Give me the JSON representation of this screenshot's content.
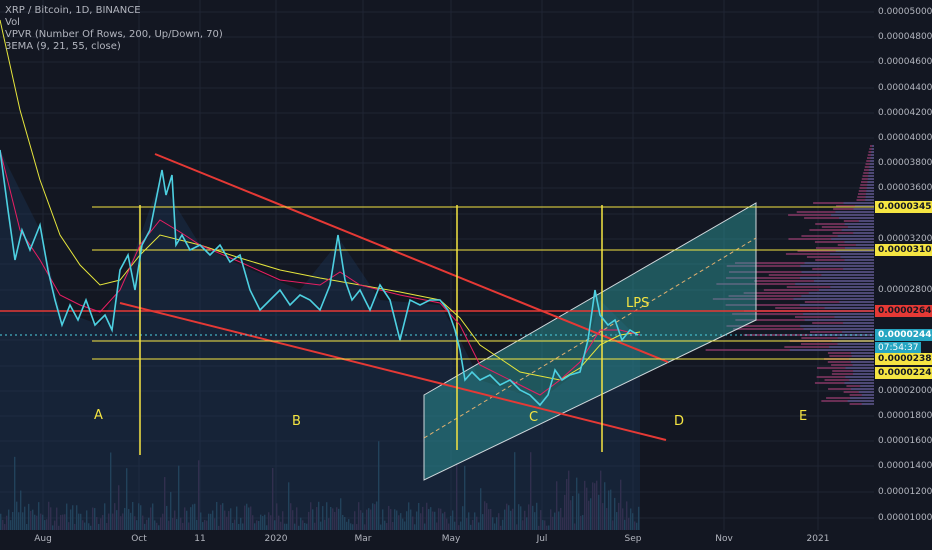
{
  "legend": {
    "symbol": "XRP / Bitcoin, 1D, BINANCE",
    "volume": "Vol",
    "vpvr": "VPVR (Number Of Rows, 200, Up/Down, 70)",
    "ema": "3EMA (9, 21, 55, close)"
  },
  "price_ticks": [
    "0.00005000",
    "0.00004800",
    "0.00004600",
    "0.00004400",
    "0.00004200",
    "0.00004000",
    "0.00003800",
    "0.00003600",
    "0.00003200",
    "0.00002800",
    "0.00002000",
    "0.00001800",
    "0.00001600",
    "0.00001400",
    "0.00001200",
    "0.00001000"
  ],
  "price_labels": {
    "l3456": "0.00003456",
    "l3108": "0.00003108",
    "l2643": "0.00002643",
    "l2443": "0.00002443",
    "countdown": "07:54:37",
    "l2389": "0.00002389",
    "l2245": "0.00002245"
  },
  "time_ticks": [
    "Aug",
    "Oct",
    "11",
    "2020",
    "Mar",
    "May",
    "Jul",
    "Sep",
    "Nov",
    "2021"
  ],
  "annotations": {
    "a": "A",
    "b": "B",
    "c": "C",
    "d": "D",
    "e": "E",
    "lps": "LPS"
  },
  "colors": {
    "background": "#131722",
    "price_line": "#4dd0e1",
    "ema_fast": "#e91e63",
    "ema_slow": "#e6e63c",
    "resistance": "#e53935",
    "level": "#f5e542",
    "channel_fill": "#2fa3a3",
    "volume": "#8e3b6a"
  }
}
